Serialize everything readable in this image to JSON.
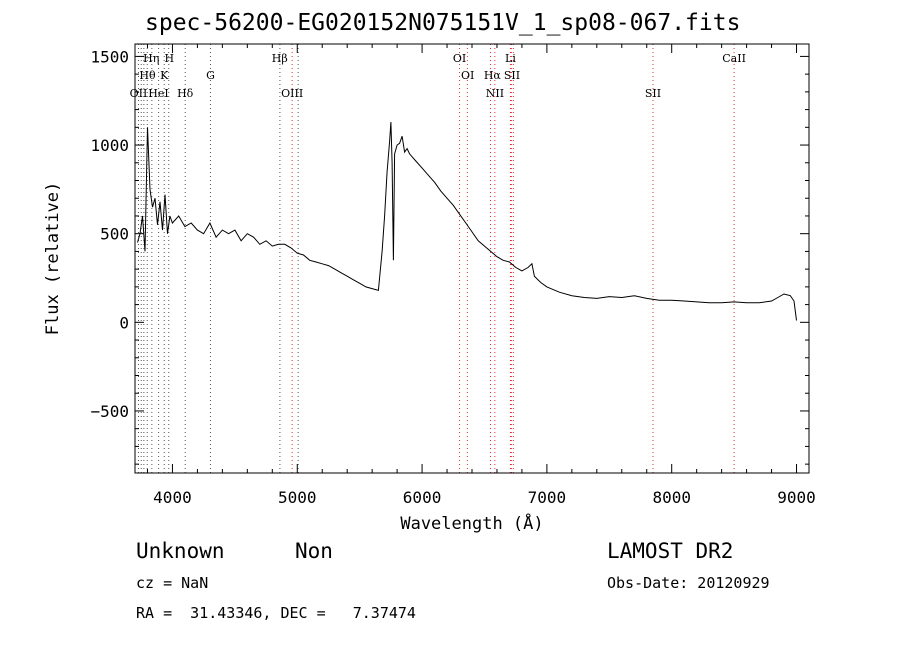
{
  "chart_data": {
    "type": "line",
    "title": "spec-56200-EG020152N075151V_1_sp08-067.fits",
    "xlabel": "Wavelength (Å)",
    "ylabel": "Flux (relative)",
    "xlim": [
      3700,
      9100
    ],
    "ylim": [
      -850,
      1570
    ],
    "x_ticks": [
      4000,
      5000,
      6000,
      7000,
      8000,
      9000
    ],
    "y_ticks": [
      -500,
      0,
      500,
      1000,
      1500
    ],
    "x_tick_labels": [
      "4000",
      "5000",
      "6000",
      "7000",
      "8000",
      "9000"
    ],
    "y_tick_labels": [
      "−500",
      "0",
      "500",
      "1000",
      "1500"
    ],
    "grid": false,
    "series": [
      {
        "color": "#000000",
        "x": [
          3720,
          3740,
          3760,
          3780,
          3800,
          3820,
          3840,
          3860,
          3880,
          3900,
          3920,
          3940,
          3960,
          3980,
          4000,
          4050,
          4100,
          4150,
          4200,
          4250,
          4300,
          4350,
          4400,
          4450,
          4500,
          4550,
          4600,
          4650,
          4700,
          4750,
          4800,
          4850,
          4900,
          4950,
          5000,
          5050,
          5100,
          5150,
          5200,
          5250,
          5300,
          5350,
          5400,
          5450,
          5500,
          5550,
          5600,
          5650,
          5680,
          5700,
          5720,
          5740,
          5750,
          5760,
          5770,
          5780,
          5800,
          5820,
          5840,
          5860,
          5880,
          5900,
          5950,
          6000,
          6050,
          6100,
          6150,
          6200,
          6250,
          6300,
          6350,
          6400,
          6450,
          6500,
          6550,
          6600,
          6650,
          6700,
          6750,
          6800,
          6850,
          6880,
          6900,
          6950,
          7000,
          7100,
          7200,
          7300,
          7400,
          7500,
          7600,
          7700,
          7800,
          7900,
          8000,
          8100,
          8200,
          8300,
          8400,
          8500,
          8600,
          8700,
          8800,
          8850,
          8900,
          8950,
          8980,
          9000
        ],
        "values": [
          450,
          500,
          600,
          400,
          1100,
          750,
          650,
          700,
          550,
          680,
          520,
          720,
          500,
          600,
          560,
          600,
          540,
          560,
          520,
          500,
          560,
          480,
          520,
          500,
          520,
          460,
          500,
          480,
          440,
          460,
          430,
          440,
          440,
          420,
          390,
          380,
          350,
          340,
          330,
          320,
          300,
          280,
          260,
          240,
          220,
          200,
          190,
          180,
          400,
          600,
          850,
          1020,
          1130,
          900,
          350,
          950,
          1000,
          1010,
          1050,
          960,
          980,
          950,
          910,
          870,
          830,
          790,
          740,
          700,
          660,
          610,
          560,
          510,
          460,
          430,
          400,
          370,
          350,
          340,
          310,
          290,
          310,
          330,
          260,
          225,
          200,
          170,
          150,
          140,
          135,
          145,
          140,
          150,
          135,
          125,
          125,
          120,
          115,
          110,
          110,
          115,
          110,
          110,
          120,
          140,
          160,
          150,
          120,
          10
        ]
      }
    ],
    "line_labels": [
      {
        "text": "Hη",
        "x": 3830,
        "row": 1
      },
      {
        "text": "H",
        "x": 3975,
        "row": 1
      },
      {
        "text": "Hβ",
        "x": 4860,
        "row": 1
      },
      {
        "text": "OI",
        "x": 6300,
        "row": 1
      },
      {
        "text": "Li",
        "x": 6708,
        "row": 1
      },
      {
        "text": "CaII",
        "x": 8500,
        "row": 1
      },
      {
        "text": "Hθ",
        "x": 3800,
        "row": 2
      },
      {
        "text": "K",
        "x": 3934,
        "row": 2
      },
      {
        "text": "G",
        "x": 4305,
        "row": 2
      },
      {
        "text": "OI",
        "x": 6365,
        "row": 2
      },
      {
        "text": "Hα",
        "x": 6563,
        "row": 2
      },
      {
        "text": "SII",
        "x": 6720,
        "row": 2
      },
      {
        "text": "OII",
        "x": 3728,
        "row": 3
      },
      {
        "text": "HeI",
        "x": 3888,
        "row": 3
      },
      {
        "text": "Hδ",
        "x": 4102,
        "row": 3
      },
      {
        "text": "OIII",
        "x": 4959,
        "row": 3
      },
      {
        "text": "NII",
        "x": 6584,
        "row": 3
      },
      {
        "text": "SII",
        "x": 7850,
        "row": 3
      }
    ],
    "line_markers": {
      "black": [
        3728,
        3750,
        3771,
        3798,
        3835,
        3889,
        3934,
        3970,
        4102,
        4305,
        4861,
        5007
      ],
      "red": [
        4959,
        6300,
        6363,
        6548,
        6583,
        6708,
        6716,
        6731,
        7850,
        8500
      ]
    }
  },
  "info": {
    "class": "Unknown",
    "subclass": "Non",
    "survey": "LAMOST DR2",
    "cz": "cz = NaN",
    "obs_date": "Obs-Date: 20120929",
    "coords": "RA =  31.43346, DEC =   7.37474"
  }
}
